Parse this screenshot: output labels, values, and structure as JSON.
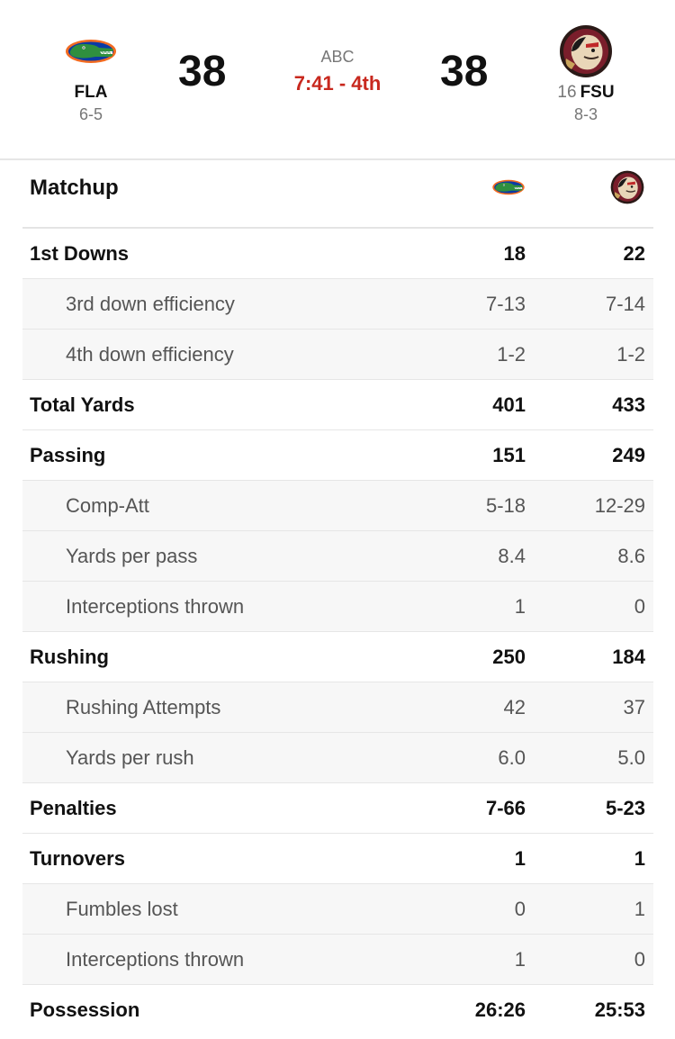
{
  "game": {
    "network": "ABC",
    "clock": "7:41 - 4th"
  },
  "away": {
    "abbr": "FLA",
    "record": "6-5",
    "score": "38",
    "logo_icon": "gators-logo-icon",
    "colors": {
      "orange": "#f26b21",
      "blue": "#0b3aa5",
      "green": "#2f8f3f"
    }
  },
  "home": {
    "rank": "16",
    "abbr": "FSU",
    "record": "8-3",
    "score": "38",
    "logo_icon": "seminoles-logo-icon",
    "colors": {
      "garnet": "#7a1e2b",
      "gold": "#c9a45c"
    }
  },
  "matchup": {
    "title": "Matchup",
    "rows": [
      {
        "label": "1st Downs",
        "away": "18",
        "home": "22",
        "level": "main"
      },
      {
        "label": "3rd down efficiency",
        "away": "7-13",
        "home": "7-14",
        "level": "sub"
      },
      {
        "label": "4th down efficiency",
        "away": "1-2",
        "home": "1-2",
        "level": "sub"
      },
      {
        "label": "Total Yards",
        "away": "401",
        "home": "433",
        "level": "main"
      },
      {
        "label": "Passing",
        "away": "151",
        "home": "249",
        "level": "main"
      },
      {
        "label": "Comp-Att",
        "away": "5-18",
        "home": "12-29",
        "level": "sub"
      },
      {
        "label": "Yards per pass",
        "away": "8.4",
        "home": "8.6",
        "level": "sub"
      },
      {
        "label": "Interceptions thrown",
        "away": "1",
        "home": "0",
        "level": "sub"
      },
      {
        "label": "Rushing",
        "away": "250",
        "home": "184",
        "level": "main"
      },
      {
        "label": "Rushing Attempts",
        "away": "42",
        "home": "37",
        "level": "sub"
      },
      {
        "label": "Yards per rush",
        "away": "6.0",
        "home": "5.0",
        "level": "sub"
      },
      {
        "label": "Penalties",
        "away": "7-66",
        "home": "5-23",
        "level": "main"
      },
      {
        "label": "Turnovers",
        "away": "1",
        "home": "1",
        "level": "main"
      },
      {
        "label": "Fumbles lost",
        "away": "0",
        "home": "1",
        "level": "sub"
      },
      {
        "label": "Interceptions thrown",
        "away": "1",
        "home": "0",
        "level": "sub"
      },
      {
        "label": "Possession",
        "away": "26:26",
        "home": "25:53",
        "level": "main"
      }
    ]
  }
}
